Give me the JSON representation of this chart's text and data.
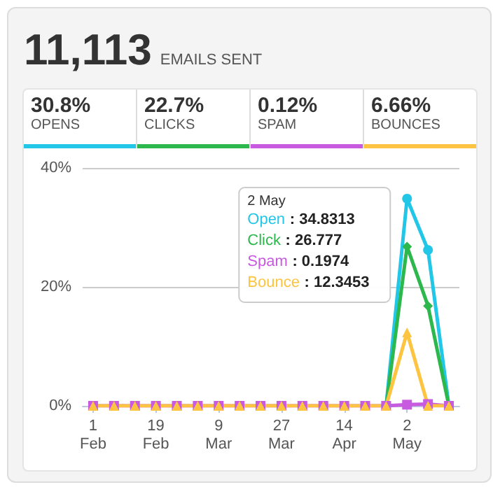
{
  "chart_data": {
    "type": "line",
    "title": "11,113",
    "subtitle": "EMAILS SENT",
    "annotations": [
      "30.8%",
      "OPENS",
      "22.7%",
      "CLICKS",
      "0.12%",
      "SPAM",
      "6.66%",
      "BOUNCES",
      "2 May",
      ": 34.8313",
      ": 26.777",
      ": 0.1974",
      ": 12.3453"
    ],
    "x": [
      "--02-01",
      "--02-07",
      "--02-13",
      "--02-19",
      "--02-25",
      "--03-03",
      "--03-09",
      "--03-15",
      "--03-21",
      "--03-27",
      "--04-02",
      "--04-08",
      "--04-14",
      "--04-20",
      "--04-26",
      "--05-02",
      "--05-08",
      "--05-14"
    ],
    "series": [
      {
        "name": "Open",
        "color": "#22c6e6",
        "marker": "circle",
        "values": [
          null,
          null,
          null,
          null,
          null,
          null,
          null,
          null,
          null,
          null,
          null,
          null,
          null,
          null,
          0,
          34.8313,
          26.2,
          0
        ]
      },
      {
        "name": "Click",
        "color": "#2db84d",
        "marker": "diamond",
        "values": [
          null,
          null,
          null,
          null,
          null,
          null,
          null,
          null,
          null,
          null,
          null,
          null,
          null,
          null,
          0,
          26.777,
          16.8,
          0
        ]
      },
      {
        "name": "Spam",
        "color": "#c85ae0",
        "marker": "square",
        "values": [
          0,
          0,
          0,
          0,
          0,
          0,
          0,
          0,
          0,
          0,
          0,
          0,
          0,
          0,
          0,
          0.1974,
          0.3,
          0
        ]
      },
      {
        "name": "Bounce",
        "color": "#fcc440",
        "marker": "triangle",
        "values": [
          0,
          0,
          0,
          0,
          0,
          0,
          0,
          0,
          0,
          0,
          0,
          0,
          0,
          0,
          0,
          12.3453,
          0,
          0
        ]
      }
    ],
    "xlim": [
      "--01-29",
      "--05-17"
    ],
    "xticks": [
      {
        "value": "--02-01",
        "label": "1\nFeb"
      },
      {
        "value": "--02-19",
        "label": "19\nFeb"
      },
      {
        "value": "--03-09",
        "label": "9\nMar"
      },
      {
        "value": "--03-27",
        "label": "27\nMar"
      },
      {
        "value": "--04-14",
        "label": "14\nApr"
      },
      {
        "value": "--05-02",
        "label": "2\nMay"
      }
    ],
    "ylim": [
      0,
      40
    ],
    "yticks": [
      {
        "value": 0,
        "label": "0%"
      },
      {
        "value": 20,
        "label": "20%"
      },
      {
        "value": 40,
        "label": "40%"
      }
    ],
    "grid": "y",
    "line_style": "solid"
  }
}
